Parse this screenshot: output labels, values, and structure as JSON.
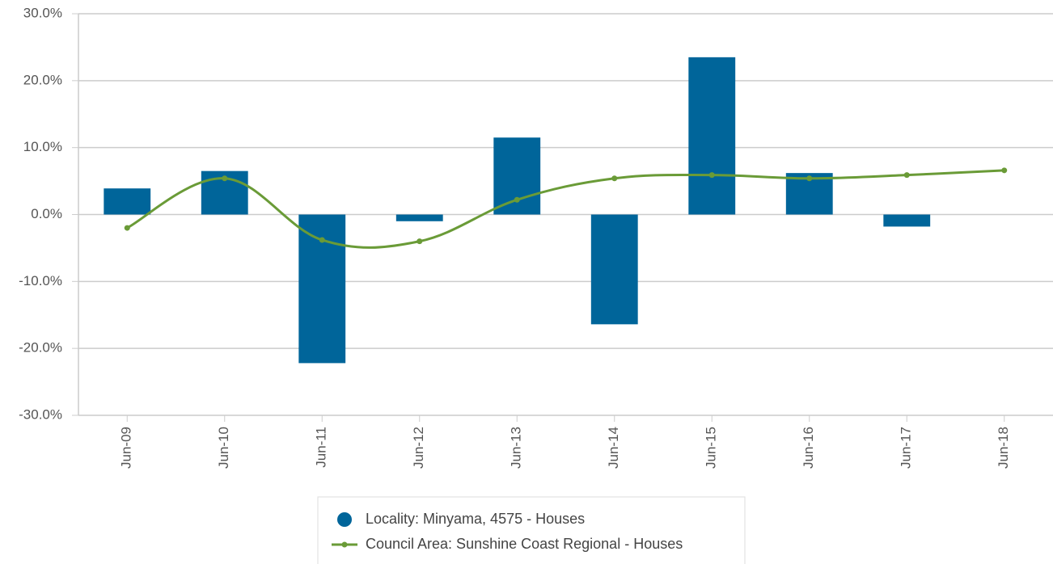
{
  "chart_data": {
    "type": "bar",
    "categories": [
      "Jun-09",
      "Jun-10",
      "Jun-11",
      "Jun-12",
      "Jun-13",
      "Jun-14",
      "Jun-15",
      "Jun-16",
      "Jun-17",
      "Jun-18"
    ],
    "series": [
      {
        "name": "Locality: Minyama, 4575 - Houses",
        "type": "bar",
        "color": "#00659a",
        "values": [
          3.9,
          6.5,
          -22.2,
          -1.0,
          11.5,
          -16.4,
          23.5,
          6.2,
          -1.8,
          null
        ]
      },
      {
        "name": "Council Area: Sunshine Coast Regional - Houses",
        "type": "line",
        "color": "#6a9b37",
        "values": [
          -2.0,
          5.4,
          -3.8,
          -4.0,
          2.2,
          5.4,
          5.9,
          5.4,
          5.9,
          6.6
        ]
      }
    ],
    "ylim": [
      -30,
      30
    ],
    "yticks": [
      {
        "value": -30,
        "label": "-30.0%"
      },
      {
        "value": -20,
        "label": "-20.0%"
      },
      {
        "value": -10,
        "label": "-10.0%"
      },
      {
        "value": 0,
        "label": "0.0%"
      },
      {
        "value": 10,
        "label": "10.0%"
      },
      {
        "value": 20,
        "label": "20.0%"
      },
      {
        "value": 30,
        "label": "30.0%"
      }
    ],
    "grid": true,
    "legend": "bottom"
  }
}
